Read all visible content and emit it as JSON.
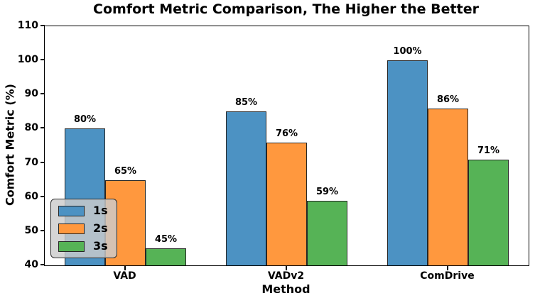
{
  "chart_data": {
    "type": "bar",
    "title": "Comfort Metric Comparison, The Higher the Better",
    "xlabel": "Method",
    "ylabel": "Comfort Metric (%)",
    "categories": [
      "VAD",
      "VADv2",
      "ComDrive"
    ],
    "series": [
      {
        "name": "1s",
        "color": "#4C92C3",
        "values": [
          80,
          85,
          100
        ],
        "labels": [
          "80%",
          "85%",
          "100%"
        ]
      },
      {
        "name": "2s",
        "color": "#FF983E",
        "values": [
          65,
          76,
          86
        ],
        "labels": [
          "65%",
          "76%",
          "86%"
        ]
      },
      {
        "name": "3s",
        "color": "#56B356",
        "values": [
          45,
          59,
          71
        ],
        "labels": [
          "45%",
          "59%",
          "71%"
        ]
      }
    ],
    "ylim": [
      40,
      110
    ],
    "yticks": [
      40,
      50,
      60,
      70,
      80,
      90,
      100,
      110
    ],
    "ytick_labels": [
      "40",
      "50",
      "60",
      "70",
      "80",
      "90",
      "100",
      "110"
    ],
    "legend_position": "lower left",
    "grid": false,
    "bar_edge_color": "#262626",
    "text_color": "#000000",
    "background_color": "#ffffff"
  }
}
